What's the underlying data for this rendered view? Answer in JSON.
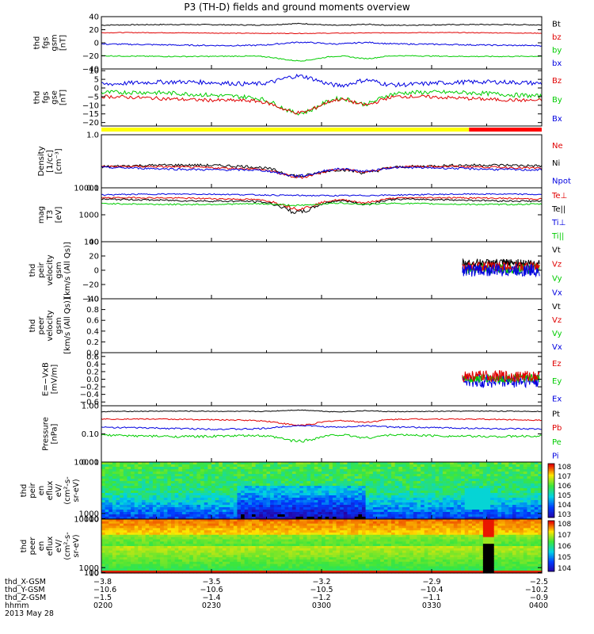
{
  "title": "P3 (TH-D) fields and ground moments overview",
  "colors": {
    "black": "#000000",
    "red": "#e00000",
    "green": "#00cc00",
    "blue": "#0000e0",
    "yellow": "#ffff00",
    "barRed": "#ff0000"
  },
  "chart_data": [
    {
      "type": "line",
      "ylabel": [
        "thd",
        "fgs",
        "gsm",
        "[nT]"
      ],
      "ylim": [
        -40,
        40
      ],
      "yticks": [
        {
          "v": 40,
          "l": "40"
        },
        {
          "v": 20,
          "l": "20"
        },
        {
          "v": 0,
          "l": "0"
        },
        {
          "v": -20,
          "l": "−20"
        },
        {
          "v": -40,
          "l": "−40"
        }
      ],
      "legend": [
        {
          "name": "Bt",
          "color": "#000000"
        },
        {
          "name": "bz",
          "color": "#e00000"
        },
        {
          "name": "by",
          "color": "#00cc00"
        },
        {
          "name": "bx",
          "color": "#0000e0"
        }
      ],
      "series": [
        {
          "color": "#000000",
          "mean": 27,
          "noise": 1.5,
          "dip": 3
        },
        {
          "color": "#e00000",
          "mean": 15,
          "noise": 1,
          "dip": 0
        },
        {
          "color": "#0000e0",
          "mean": -3,
          "noise": 2,
          "dip": 4
        },
        {
          "color": "#00cc00",
          "mean": -20,
          "noise": 1.5,
          "dip": -8
        }
      ]
    },
    {
      "type": "line",
      "ylabel": [
        "thd",
        "fgs",
        "gse",
        "[nT]"
      ],
      "ylim": [
        -22,
        11
      ],
      "yticks": [
        {
          "v": 10,
          "l": "10"
        },
        {
          "v": 5,
          "l": "5"
        },
        {
          "v": 0,
          "l": "0"
        },
        {
          "v": -5,
          "l": "−5"
        },
        {
          "v": -10,
          "l": "−10"
        },
        {
          "v": -15,
          "l": "−15"
        },
        {
          "v": -20,
          "l": "−20"
        }
      ],
      "legend": [
        {
          "name": "Bz",
          "color": "#e00000"
        },
        {
          "name": "By",
          "color": "#00cc00"
        },
        {
          "name": "Bx",
          "color": "#0000e0"
        }
      ],
      "series": [
        {
          "color": "#0000e0",
          "mean": 2,
          "noise": 2.5,
          "dip": 6
        },
        {
          "color": "#00cc00",
          "mean": -4,
          "noise": 2.5,
          "dip": -9
        },
        {
          "color": "#e00000",
          "mean": -6,
          "noise": 2,
          "dip": -8
        }
      ]
    },
    {
      "type": "line",
      "scale": "log",
      "ylabel": [
        "Density",
        "[1/cc]",
        "[cm^-3]"
      ],
      "ylim": [
        0.1,
        1.0
      ],
      "yticks": [
        {
          "v": 1.0,
          "l": "1.0"
        },
        {
          "v": 0.1,
          "l": "0.1"
        }
      ],
      "legend": [
        {
          "name": "Ne",
          "color": "#e00000"
        },
        {
          "name": "Ni",
          "color": "#000000"
        },
        {
          "name": "Npot",
          "color": "#0000e0"
        }
      ],
      "series": [
        {
          "color": "#000000",
          "mean": 0.25,
          "noise": 0.03,
          "dip": -0.07
        },
        {
          "color": "#e00000",
          "mean": 0.24,
          "noise": 0.02,
          "dip": -0.07
        },
        {
          "color": "#0000e0",
          "mean": 0.23,
          "noise": 0.02,
          "dip": -0.06
        }
      ]
    },
    {
      "type": "line",
      "scale": "log",
      "ylabel": [
        "mag",
        "T3",
        "[eV]"
      ],
      "ylim": [
        100,
        10000
      ],
      "yticks": [
        {
          "v": 10000,
          "l": "10000"
        },
        {
          "v": 1000,
          "l": "1000"
        },
        {
          "v": 100,
          "l": "100"
        }
      ],
      "legend": [
        {
          "name": "Te⊥",
          "color": "#e00000"
        },
        {
          "name": "Te||",
          "color": "#000000"
        },
        {
          "name": "Ti⊥",
          "color": "#0000e0"
        },
        {
          "name": "Ti||",
          "color": "#00cc00"
        }
      ],
      "series": [
        {
          "color": "#0000e0",
          "mean": 5500,
          "noise": 600,
          "dip": 0
        },
        {
          "color": "#e00000",
          "mean": 4000,
          "noise": 500,
          "dip": -2000
        },
        {
          "color": "#000000",
          "mean": 3500,
          "noise": 500,
          "dip": -2200
        },
        {
          "color": "#00cc00",
          "mean": 2600,
          "noise": 300,
          "dip": -500
        }
      ]
    },
    {
      "type": "line",
      "ylabel": [
        "thd",
        "peir",
        "velocity",
        "gsm",
        "[km/s (All Qs)]"
      ],
      "ylim": [
        -40,
        40
      ],
      "yticks": [
        {
          "v": 40,
          "l": "40"
        },
        {
          "v": 20,
          "l": "20"
        },
        {
          "v": 0,
          "l": "0"
        },
        {
          "v": -20,
          "l": "−20"
        },
        {
          "v": -40,
          "l": "−40"
        }
      ],
      "legend": [
        {
          "name": "Vt",
          "color": "#000000"
        },
        {
          "name": "Vz",
          "color": "#e00000"
        },
        {
          "name": "Vy",
          "color": "#00cc00"
        },
        {
          "name": "Vx",
          "color": "#0000e0"
        }
      ],
      "burst": {
        "start": 0.82,
        "series": [
          {
            "color": "#000000",
            "mean": 10,
            "noise": 6
          },
          {
            "color": "#00cc00",
            "mean": 2,
            "noise": 7
          },
          {
            "color": "#e00000",
            "mean": 5,
            "noise": 7
          },
          {
            "color": "#0000e0",
            "mean": 0,
            "noise": 9
          }
        ]
      }
    },
    {
      "type": "line",
      "ylabel": [
        "thd",
        "peer",
        "velocity",
        "gsm",
        "[km/s (All Qs)]"
      ],
      "ylim": [
        0,
        1
      ],
      "yticks": [
        {
          "v": 1.0,
          "l": "1.0"
        },
        {
          "v": 0.8,
          "l": "0.8"
        },
        {
          "v": 0.6,
          "l": "0.6"
        },
        {
          "v": 0.4,
          "l": "0.4"
        },
        {
          "v": 0.2,
          "l": "0.2"
        },
        {
          "v": 0.0,
          "l": "0.0"
        }
      ],
      "legend": [
        {
          "name": "Vt",
          "color": "#000000"
        },
        {
          "name": "Vz",
          "color": "#e00000"
        },
        {
          "name": "Vy",
          "color": "#00cc00"
        },
        {
          "name": "Vx",
          "color": "#0000e0"
        }
      ],
      "series": []
    },
    {
      "type": "line",
      "ylabel": [
        "E=−VxB",
        "[mV/m]"
      ],
      "ylim": [
        -0.7,
        0.7
      ],
      "yticks": [
        {
          "v": 0.6,
          "l": "0.6"
        },
        {
          "v": 0.4,
          "l": "0.4"
        },
        {
          "v": 0.2,
          "l": "0.2"
        },
        {
          "v": 0.0,
          "l": "0.0"
        },
        {
          "v": -0.2,
          "l": "−0.2"
        },
        {
          "v": -0.4,
          "l": "−0.4"
        },
        {
          "v": -0.6,
          "l": "−0.6"
        }
      ],
      "legend": [
        {
          "name": "Ez",
          "color": "#e00000"
        },
        {
          "name": "Ey",
          "color": "#00cc00"
        },
        {
          "name": "Ex",
          "color": "#0000e0"
        }
      ],
      "burst": {
        "start": 0.82,
        "series": [
          {
            "color": "#0000e0",
            "mean": -0.05,
            "noise": 0.18
          },
          {
            "color": "#00cc00",
            "mean": 0.02,
            "noise": 0.12
          },
          {
            "color": "#e00000",
            "mean": 0.08,
            "noise": 0.15
          }
        ]
      }
    },
    {
      "type": "line",
      "scale": "log",
      "ylabel": [
        "Pressure",
        "[nPa]"
      ],
      "ylim": [
        0.01,
        1.0
      ],
      "yticks": [
        {
          "v": 1.0,
          "l": "1.00"
        },
        {
          "v": 0.1,
          "l": "0.10"
        },
        {
          "v": 0.01,
          "l": "0.01"
        }
      ],
      "legend": [
        {
          "name": "Pt",
          "color": "#000000"
        },
        {
          "name": "Pb",
          "color": "#e00000"
        },
        {
          "name": "Pe",
          "color": "#00cc00"
        },
        {
          "name": "Pi",
          "color": "#0000e0"
        }
      ],
      "series": [
        {
          "color": "#000000",
          "mean": 0.62,
          "noise": 0.04,
          "dip": 0.1
        },
        {
          "color": "#e00000",
          "mean": 0.32,
          "noise": 0.03,
          "dip": -0.1
        },
        {
          "color": "#0000e0",
          "mean": 0.16,
          "noise": 0.02,
          "dip": 0.04
        },
        {
          "color": "#00cc00",
          "mean": 0.09,
          "noise": 0.015,
          "dip": -0.04
        }
      ]
    },
    {
      "type": "heatmap",
      "ylabel": [
        "thd",
        "peir",
        "en",
        "eflux",
        "eV/",
        "(cm^2-s-",
        "sr-eV)"
      ],
      "ylim": [
        10,
        10000
      ],
      "yticks": [
        {
          "v": 10000,
          "l": "10000"
        },
        {
          "v": 1000,
          "l": "1000"
        },
        {
          "v": 100,
          "l": "100"
        },
        {
          "v": 10,
          "l": "10"
        }
      ],
      "colorbar": {
        "min": 3,
        "max": 8,
        "labels": [
          "10^8",
          "10^7",
          "10^6",
          "10^5",
          "10^4",
          "10^3"
        ]
      }
    },
    {
      "type": "heatmap",
      "ylabel": [
        "thd",
        "peer",
        "en",
        "eflux",
        "eV/",
        "(cm^2-s-",
        "sr-eV)"
      ],
      "ylim": [
        10,
        10000
      ],
      "yticks": [
        {
          "v": 10000,
          "l": "10000"
        },
        {
          "v": 1000,
          "l": "1000"
        },
        {
          "v": 100,
          "l": "100"
        },
        {
          "v": 10,
          "l": "10"
        }
      ],
      "colorbar": {
        "min": 4,
        "max": 8,
        "labels": [
          "10^8",
          "10^7",
          "10^6",
          "10^5",
          "10^4"
        ]
      }
    }
  ],
  "xaxis": {
    "rows": [
      {
        "label": "thd_X-GSM",
        "values": [
          "−3.8",
          "−3.5",
          "−3.2",
          "−2.9",
          "−2.5"
        ]
      },
      {
        "label": "thd_Y-GSM",
        "values": [
          "−10.6",
          "−10.6",
          "−10.5",
          "−10.4",
          "−10.2"
        ]
      },
      {
        "label": "thd_Z-GSM",
        "values": [
          "−1.5",
          "−1.4",
          "−1.2",
          "−1.1",
          "−0.9"
        ]
      },
      {
        "label": "hhmm",
        "values": [
          "0200",
          "0230",
          "0300",
          "0330",
          "0400"
        ]
      }
    ],
    "date": "2013 May 28"
  }
}
